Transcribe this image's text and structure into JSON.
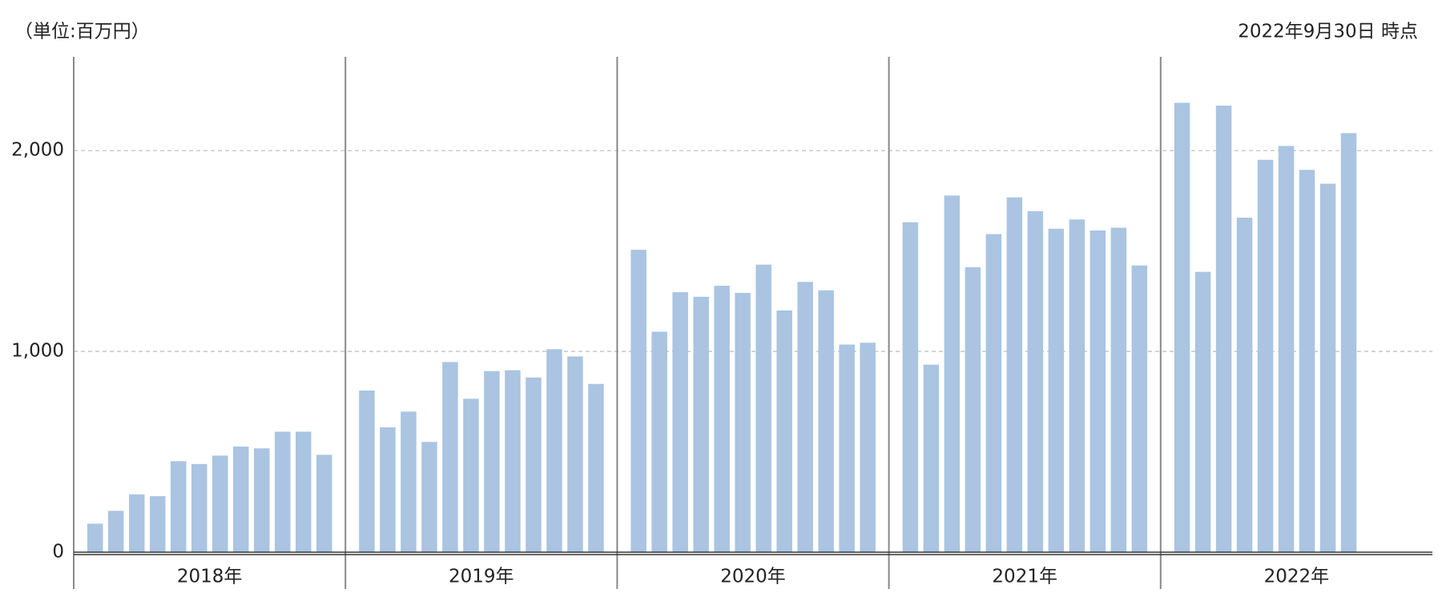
{
  "chart_data": {
    "type": "bar",
    "unit_label": "（単位:百万円）",
    "as_of": "2022年9月30日 時点",
    "groups": [
      {
        "label": "2018年",
        "values": [
          142,
          206,
          288,
          279,
          453,
          439,
          481,
          526,
          517,
          600,
          600,
          485
        ]
      },
      {
        "label": "2019年",
        "values": [
          805,
          622,
          700,
          549,
          947,
          764,
          902,
          906,
          870,
          1011,
          975,
          838
        ]
      },
      {
        "label": "2020年",
        "values": [
          1506,
          1098,
          1295,
          1272,
          1327,
          1291,
          1432,
          1204,
          1346,
          1304,
          1034,
          1043
        ]
      },
      {
        "label": "2021年",
        "values": [
          1643,
          934,
          1776,
          1419,
          1584,
          1767,
          1698,
          1611,
          1657,
          1602,
          1616,
          1428
        ]
      },
      {
        "label": "2022年",
        "values": [
          2238,
          1396,
          2224,
          1666,
          1954,
          2023,
          1904,
          1835,
          2087
        ]
      }
    ],
    "color": "#aac4e2",
    "ylim": [
      0,
      2467
    ],
    "yticks": [
      0,
      {
        "value": 1000,
        "label": "1,000"
      },
      {
        "value": 2000,
        "label": "2,000"
      }
    ],
    "grid": true
  }
}
